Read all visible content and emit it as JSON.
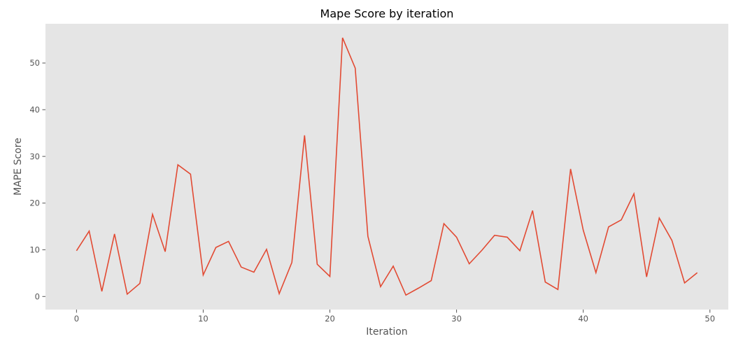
{
  "chart_data": {
    "type": "line",
    "title": "Mape Score by iteration",
    "xlabel": "Iteration",
    "ylabel": "MAPE Score",
    "xlim": [
      -2.45,
      51.45
    ],
    "ylim": [
      -2.8,
      58.4
    ],
    "xticks": [
      0,
      10,
      20,
      30,
      40,
      50
    ],
    "yticks": [
      0,
      10,
      20,
      30,
      40,
      50
    ],
    "grid": false,
    "background": "#e5e5e5",
    "line_color": "#e24a33",
    "x": [
      0,
      1,
      2,
      3,
      4,
      5,
      6,
      7,
      8,
      9,
      10,
      11,
      12,
      13,
      14,
      15,
      16,
      17,
      18,
      19,
      20,
      21,
      22,
      23,
      24,
      25,
      26,
      27,
      28,
      29,
      30,
      31,
      32,
      33,
      34,
      35,
      36,
      37,
      38,
      39,
      40,
      41,
      42,
      43,
      44,
      45,
      46,
      47,
      48,
      49
    ],
    "y": [
      9.8,
      14.0,
      1.1,
      13.4,
      0.5,
      2.8,
      17.6,
      9.6,
      28.2,
      26.2,
      4.6,
      10.5,
      11.8,
      6.3,
      5.2,
      10.1,
      0.6,
      7.3,
      34.5,
      6.9,
      4.3,
      55.4,
      48.9,
      12.9,
      2.1,
      6.5,
      0.3,
      1.8,
      3.4,
      15.6,
      12.7,
      7.0,
      9.9,
      13.1,
      12.7,
      9.8,
      18.4,
      3.1,
      1.5,
      27.3,
      14.2,
      5.1,
      14.9,
      16.4,
      22.0,
      4.2,
      16.8,
      12.0,
      2.9,
      5.1
    ]
  }
}
